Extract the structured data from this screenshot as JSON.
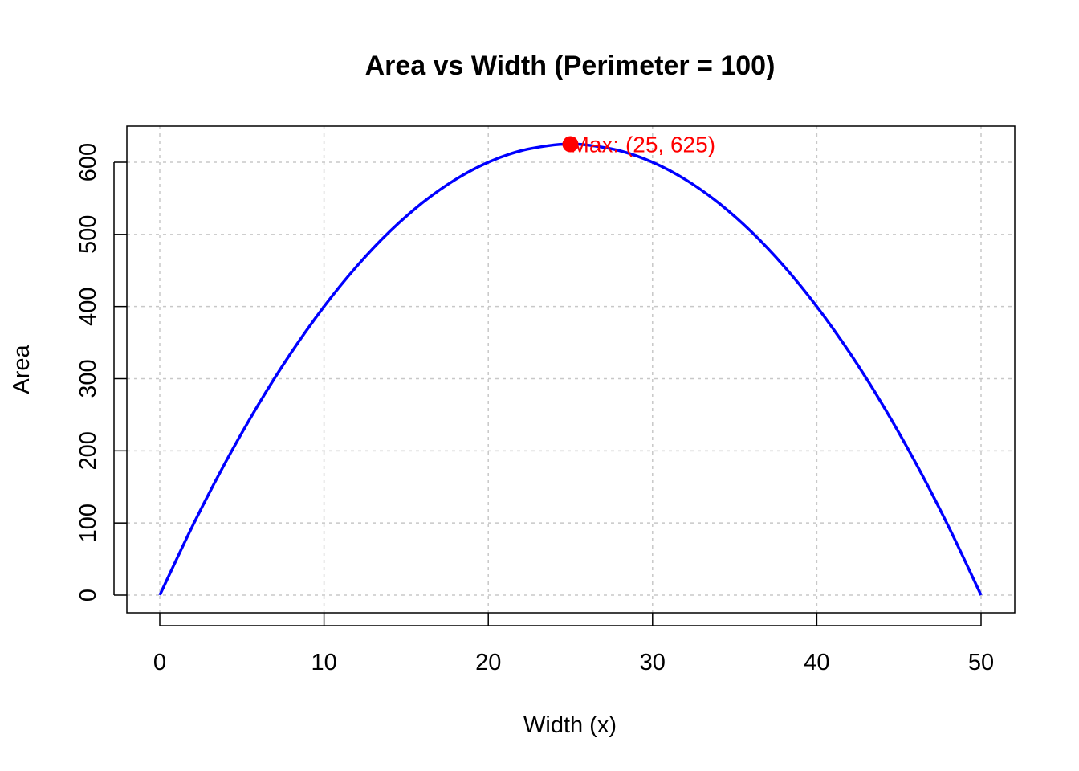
{
  "chart_data": {
    "type": "line",
    "title": "Area vs Width (Perimeter = 100)",
    "xlabel": "Width (x)",
    "ylabel": "Area",
    "xlim": [
      0,
      50
    ],
    "ylim": [
      0,
      625
    ],
    "x_ticks": [
      0,
      10,
      20,
      30,
      40,
      50
    ],
    "y_ticks": [
      0,
      100,
      200,
      300,
      400,
      500,
      600
    ],
    "grid": true,
    "series": [
      {
        "color": "#0000ff",
        "x": [
          0,
          2,
          4,
          6,
          8,
          10,
          12,
          14,
          16,
          18,
          20,
          22,
          24,
          25,
          26,
          28,
          30,
          32,
          34,
          36,
          38,
          40,
          42,
          44,
          46,
          48,
          50
        ],
        "y": [
          0,
          96,
          184,
          264,
          336,
          400,
          456,
          504,
          544,
          576,
          600,
          616,
          624,
          625,
          624,
          616,
          600,
          576,
          544,
          504,
          456,
          400,
          336,
          264,
          184,
          96,
          0
        ]
      }
    ],
    "annotations": [
      {
        "x": 25,
        "y": 625,
        "text": "Max: (25, 625)",
        "color": "#ff0000"
      }
    ]
  }
}
